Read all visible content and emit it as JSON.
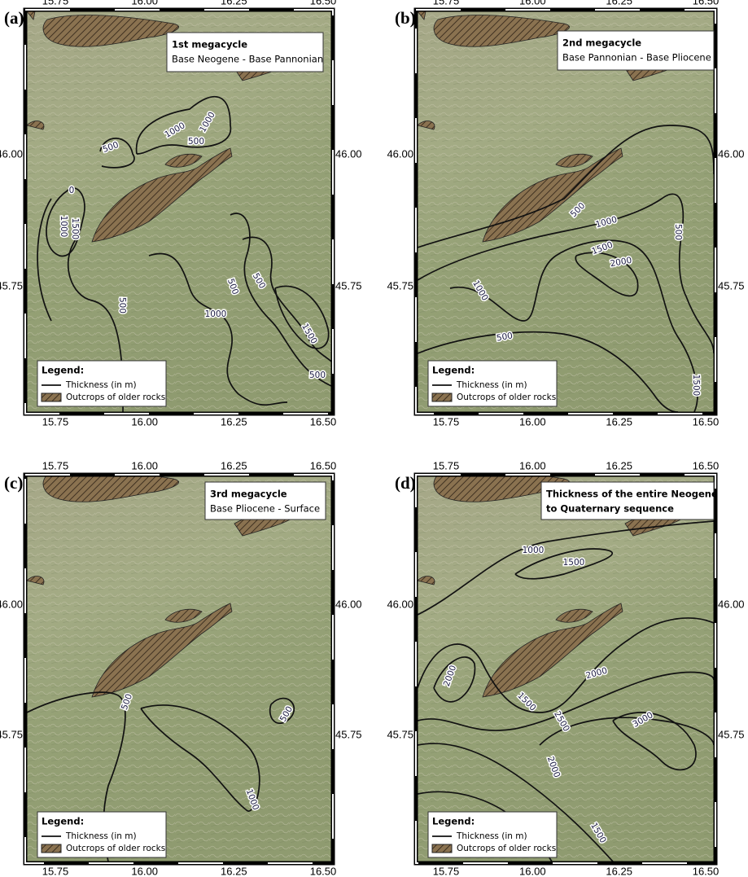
{
  "x_ticks": [
    "15.75",
    "16.00",
    "16.25",
    "16.50"
  ],
  "y_ticks": [
    "46.00",
    "45.75"
  ],
  "legend": {
    "title": "Legend:",
    "items": [
      "Thickness (in m)",
      "Outcrops of older rocks"
    ]
  },
  "panels": [
    {
      "label": "(a)",
      "title": [
        "1st megacycle"
      ],
      "subtitle": "Base Neogene - Base Pannonian",
      "contour_labels": [
        "1000",
        "1000",
        "500",
        "500",
        "0",
        "1000",
        "1500",
        "500",
        "500",
        "1000",
        "500",
        "1500",
        "500"
      ]
    },
    {
      "label": "(b)",
      "title": [
        "2nd megacycle"
      ],
      "subtitle": "Base Pannonian - Base Pliocene",
      "contour_labels": [
        "500",
        "1000",
        "1500",
        "2000",
        "500",
        "1000",
        "500",
        "1500"
      ]
    },
    {
      "label": "(c)",
      "title": [
        "3rd megacycle"
      ],
      "subtitle": "Base Pliocene - Surface",
      "contour_labels": [
        "500",
        "500",
        "1000"
      ]
    },
    {
      "label": "(d)",
      "title": [
        "Thickness of the entire Neogene",
        "to Quaternary sequence"
      ],
      "contour_labels": [
        "1000",
        "1500",
        "2000",
        "2000",
        "1500",
        "2500",
        "3000",
        "2000",
        "1500"
      ]
    }
  ]
}
